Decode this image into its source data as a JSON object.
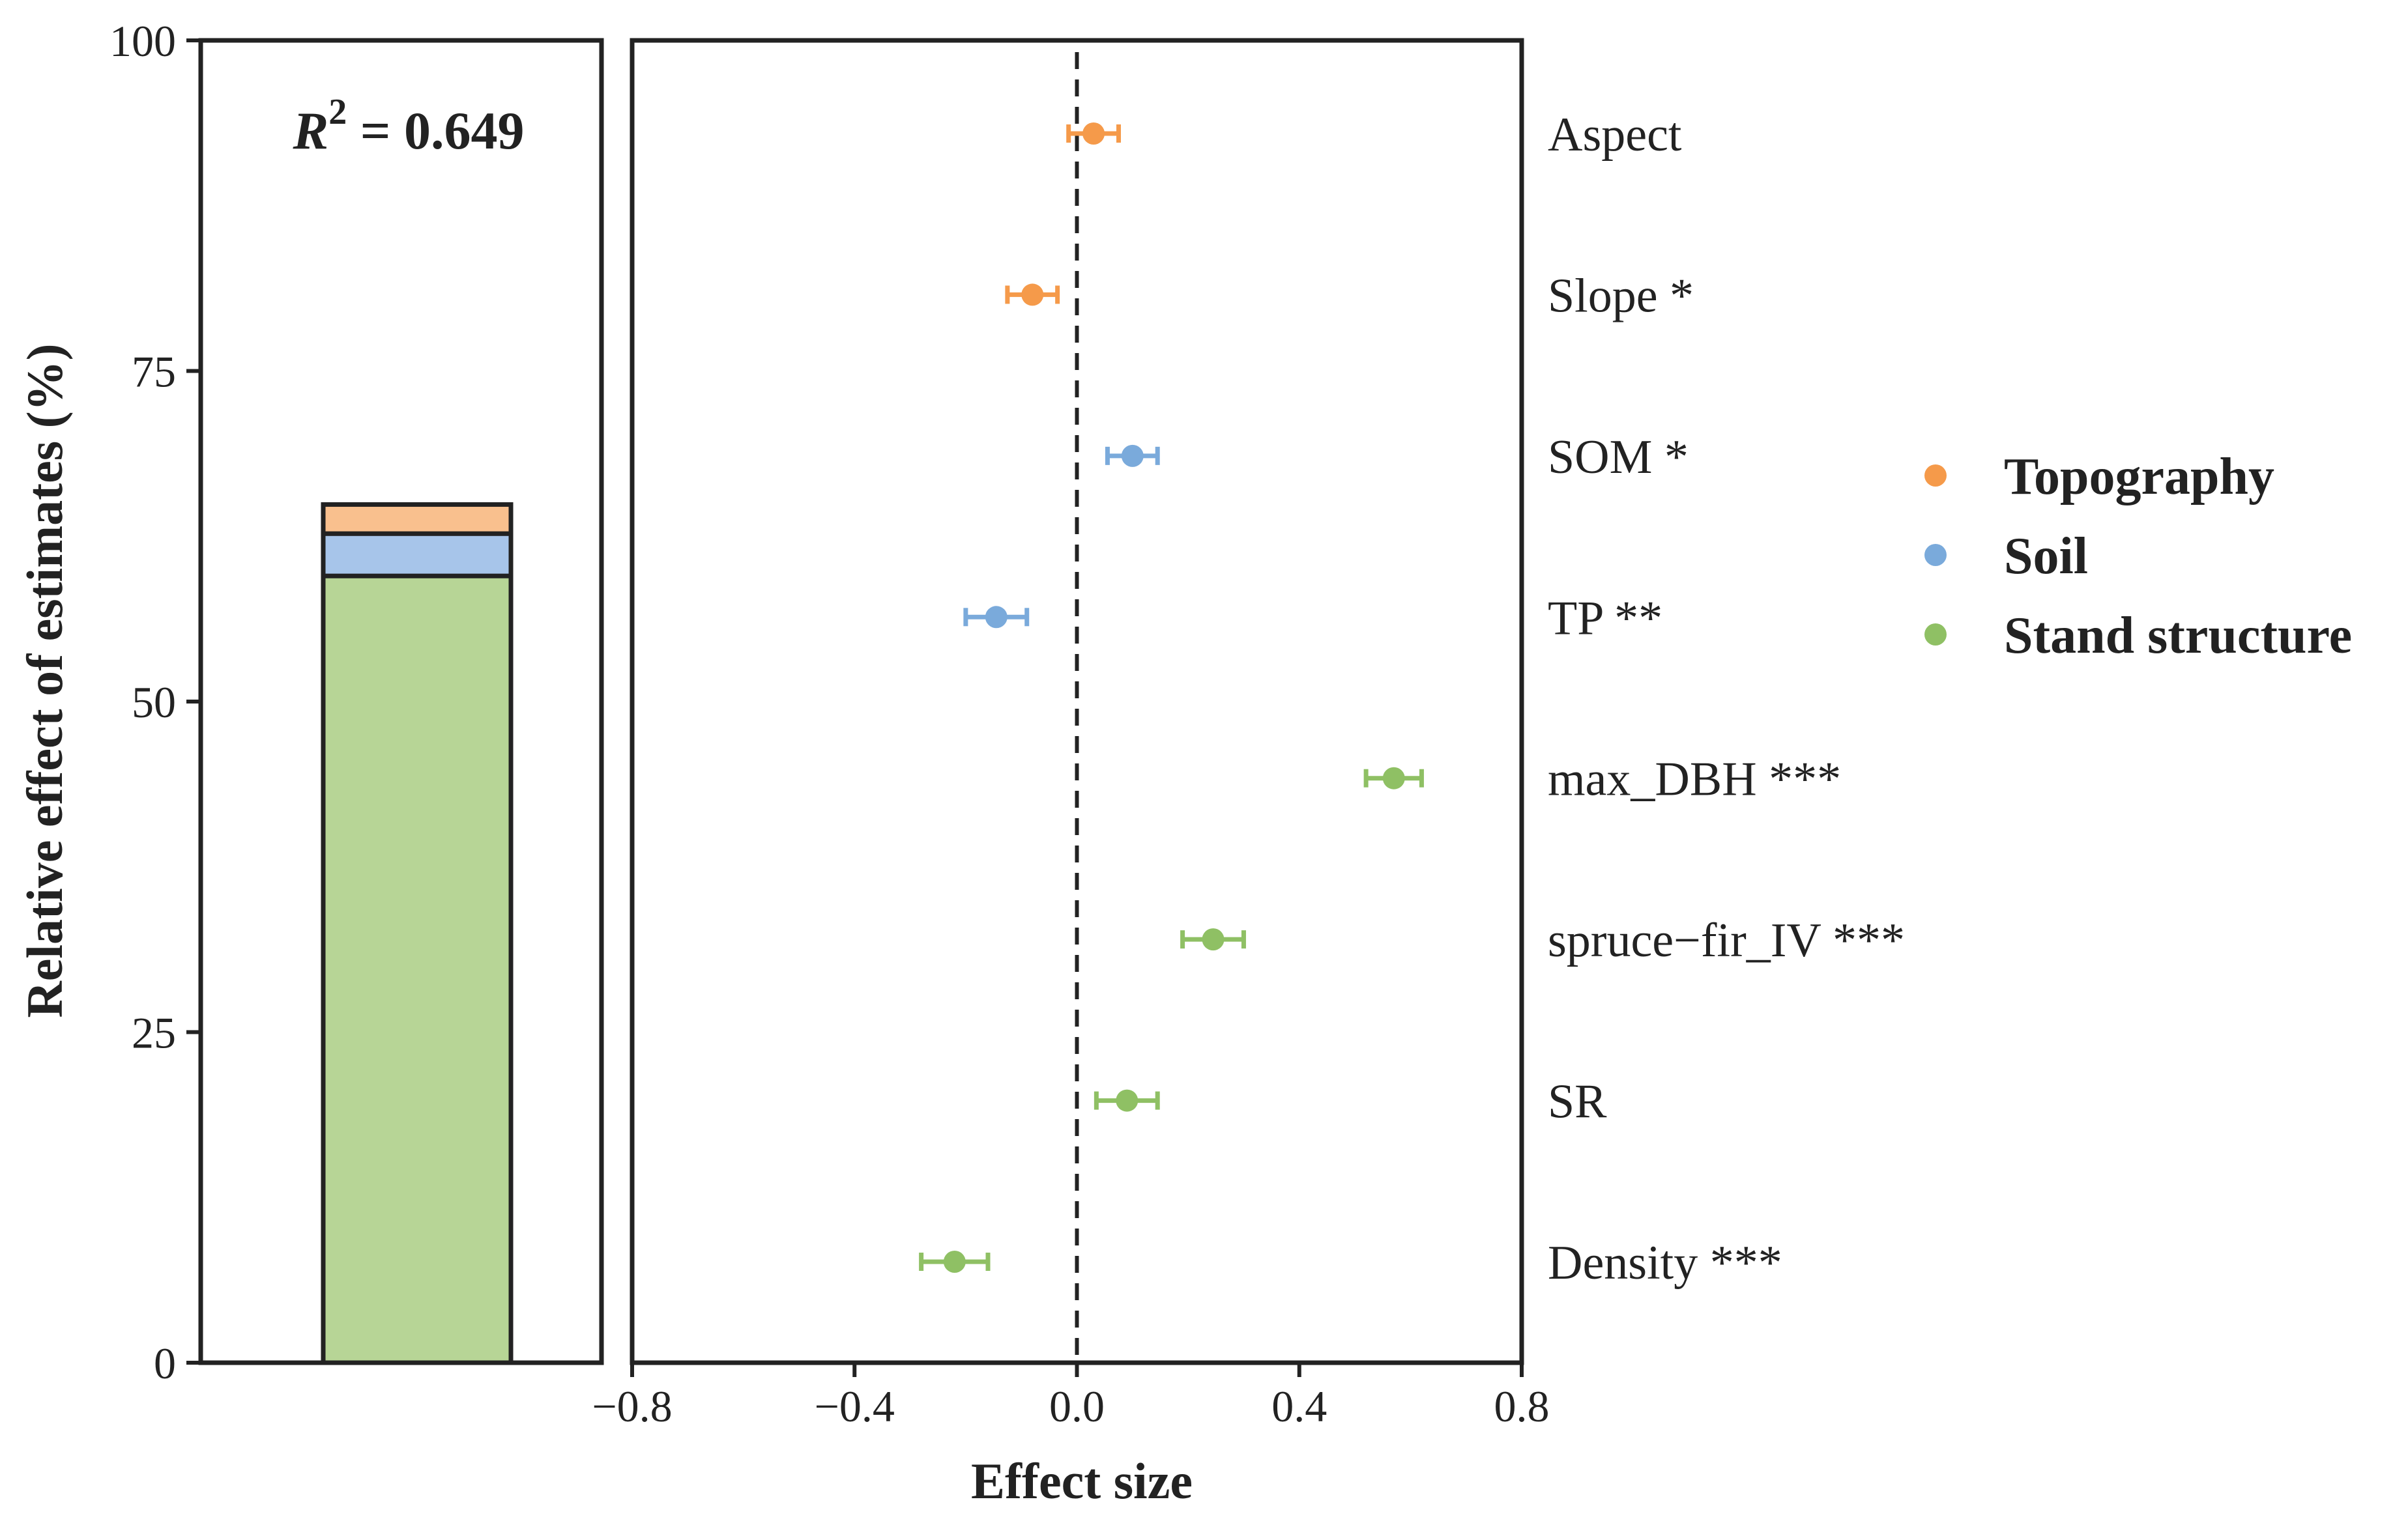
{
  "chart_data": [
    {
      "type": "bar",
      "subtype": "stacked",
      "ylabel": "Relative effect of estimates (%)",
      "ylim": [
        0,
        100
      ],
      "yticks": [
        0,
        25,
        50,
        75,
        100
      ],
      "annotation": {
        "lhs": "R",
        "sup": "2",
        "rhs": " = 0.649"
      },
      "series": [
        {
          "name": "Stand structure",
          "value": 59.5
        },
        {
          "name": "Soil",
          "value": 3.2
        },
        {
          "name": "Topography",
          "value": 2.2
        }
      ]
    },
    {
      "type": "scatter",
      "subtype": "forest-plot",
      "xlabel": "Effect size",
      "xlim": [
        -0.8,
        0.8
      ],
      "xticks": [
        -0.8,
        -0.4,
        0.0,
        0.4,
        0.8
      ],
      "xtick_labels": [
        "−0.8",
        "−0.4",
        "0.0",
        "0.4",
        "0.8"
      ],
      "reference_line": 0.0,
      "points": [
        {
          "label": "Aspect",
          "group": "Topography",
          "estimate": 0.03,
          "lower": -0.015,
          "upper": 0.075
        },
        {
          "label": "Slope *",
          "group": "Topography",
          "estimate": -0.08,
          "lower": -0.125,
          "upper": -0.035
        },
        {
          "label": "SOM *",
          "group": "Soil",
          "estimate": 0.1,
          "lower": 0.055,
          "upper": 0.145
        },
        {
          "label": "TP **",
          "group": "Soil",
          "estimate": -0.145,
          "lower": -0.2,
          "upper": -0.09
        },
        {
          "label": "max_DBH ***",
          "group": "Stand structure",
          "estimate": 0.57,
          "lower": 0.52,
          "upper": 0.62
        },
        {
          "label": "spruce−fir_IV ***",
          "group": "Stand structure",
          "estimate": 0.245,
          "lower": 0.19,
          "upper": 0.3
        },
        {
          "label": "SR",
          "group": "Stand structure",
          "estimate": 0.09,
          "lower": 0.035,
          "upper": 0.145
        },
        {
          "label": "Density ***",
          "group": "Stand structure",
          "estimate": -0.22,
          "lower": -0.28,
          "upper": -0.16
        }
      ]
    }
  ],
  "legend": [
    {
      "name": "Topography",
      "point_color": "#F59A4A",
      "bar_color": "#F9C08E"
    },
    {
      "name": "Soil",
      "point_color": "#7AAADB",
      "bar_color": "#A7C5EA"
    },
    {
      "name": "Stand structure",
      "point_color": "#8FC064",
      "bar_color": "#B7D596"
    }
  ]
}
